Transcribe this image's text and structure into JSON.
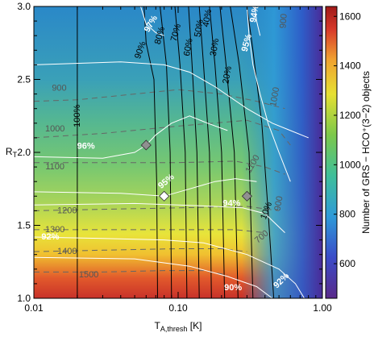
{
  "chart_data": {
    "type": "heatmap",
    "xlabel": "T",
    "xlabel_sub": "A,thresh",
    "xlabel_unit": " [K]",
    "ylabel": "R",
    "ylabel_sub": "T",
    "x_scale": "log",
    "xlim": [
      0.01,
      1.0
    ],
    "ylim": [
      1.0,
      3.0
    ],
    "x_ticks": [
      {
        "value": 0.01,
        "label": "0.01"
      },
      {
        "value": 0.1,
        "label": "0.10"
      },
      {
        "value": 1.0,
        "label": "1.00"
      }
    ],
    "y_ticks": [
      {
        "value": 1.0,
        "label": "1.0"
      },
      {
        "value": 1.5,
        "label": "1.5"
      },
      {
        "value": 2.0,
        "label": "2.0"
      },
      {
        "value": 2.5,
        "label": "2.5"
      },
      {
        "value": 3.0,
        "label": "3.0"
      }
    ],
    "colorbar": {
      "label": "Number of GRS − HCO⁺(3−2) objects",
      "range": [
        460,
        1640
      ],
      "ticks": [
        {
          "value": 600,
          "label": "600"
        },
        {
          "value": 800,
          "label": "800"
        },
        {
          "value": 1000,
          "label": "1000"
        },
        {
          "value": 1200,
          "label": "1200"
        },
        {
          "value": 1400,
          "label": "1400"
        },
        {
          "value": 1600,
          "label": "1600"
        }
      ],
      "colors": [
        "#5a2a8a",
        "#3a5bd0",
        "#2fa0d8",
        "#3fbf9a",
        "#7cc84a",
        "#e6e033",
        "#f0a030",
        "#d83a2a",
        "#a01a1a"
      ]
    },
    "count_contours_dashed": [
      {
        "label": "900",
        "points": [
          [
            0.01,
            2.35
          ],
          [
            0.02,
            2.36
          ],
          [
            0.05,
            2.4
          ],
          [
            0.1,
            2.43
          ],
          [
            0.2,
            2.4
          ],
          [
            0.35,
            2.35
          ],
          [
            0.55,
            2.3
          ]
        ]
      },
      {
        "label": "1000",
        "points": [
          [
            0.01,
            2.1
          ],
          [
            0.03,
            2.13
          ],
          [
            0.1,
            2.18
          ],
          [
            0.3,
            2.22
          ],
          [
            0.5,
            2.15
          ],
          [
            0.6,
            2.05
          ]
        ]
      },
      {
        "label": "1100",
        "points": [
          [
            0.01,
            1.93
          ],
          [
            0.03,
            1.93
          ],
          [
            0.1,
            1.93
          ],
          [
            0.25,
            1.94
          ],
          [
            0.4,
            1.9
          ],
          [
            0.55,
            1.85
          ]
        ]
      },
      {
        "label": "1200",
        "points": [
          [
            0.01,
            1.6
          ],
          [
            0.03,
            1.61
          ],
          [
            0.1,
            1.62
          ],
          [
            0.3,
            1.63
          ],
          [
            0.5,
            1.6
          ]
        ]
      },
      {
        "label": "1300",
        "points": [
          [
            0.01,
            1.47
          ],
          [
            0.03,
            1.47
          ],
          [
            0.1,
            1.47
          ],
          [
            0.25,
            1.47
          ],
          [
            0.4,
            1.45
          ]
        ]
      },
      {
        "label": "1400",
        "points": [
          [
            0.01,
            1.32
          ],
          [
            0.03,
            1.33
          ],
          [
            0.1,
            1.34
          ],
          [
            0.2,
            1.34
          ],
          [
            0.3,
            1.32
          ]
        ]
      },
      {
        "label": "1500",
        "points": [
          [
            0.01,
            1.18
          ],
          [
            0.03,
            1.18
          ],
          [
            0.08,
            1.19
          ],
          [
            0.15,
            1.19
          ],
          [
            0.22,
            1.16
          ]
        ]
      }
    ],
    "percent_contours_black": [
      {
        "label": "100%",
        "points": [
          [
            0.02,
            1.0
          ],
          [
            0.02,
            3.0
          ]
        ]
      },
      {
        "label": "90%",
        "points": [
          [
            0.072,
            1.0
          ],
          [
            0.071,
            1.8
          ],
          [
            0.068,
            2.5
          ],
          [
            0.06,
            2.75
          ],
          [
            0.058,
            3.0
          ]
        ]
      },
      {
        "label": "80%",
        "points": [
          [
            0.09,
            1.0
          ],
          [
            0.088,
            2.0
          ],
          [
            0.083,
            2.6
          ],
          [
            0.075,
            3.0
          ]
        ]
      },
      {
        "label": "70%",
        "points": [
          [
            0.115,
            1.0
          ],
          [
            0.112,
            2.0
          ],
          [
            0.103,
            2.6
          ],
          [
            0.095,
            3.0
          ]
        ]
      },
      {
        "label": "60%",
        "points": [
          [
            0.14,
            1.0
          ],
          [
            0.135,
            2.0
          ],
          [
            0.125,
            2.6
          ],
          [
            0.118,
            3.0
          ]
        ]
      },
      {
        "label": "50%",
        "points": [
          [
            0.17,
            1.0
          ],
          [
            0.165,
            2.0
          ],
          [
            0.15,
            2.6
          ],
          [
            0.14,
            3.0
          ]
        ]
      },
      {
        "label": "40%",
        "points": [
          [
            0.21,
            1.0
          ],
          [
            0.2,
            2.0
          ],
          [
            0.18,
            2.6
          ],
          [
            0.165,
            3.0
          ]
        ]
      },
      {
        "label": "30%",
        "points": [
          [
            0.26,
            1.0
          ],
          [
            0.245,
            2.0
          ],
          [
            0.215,
            2.6
          ],
          [
            0.195,
            3.0
          ]
        ]
      },
      {
        "label": "20%",
        "points": [
          [
            0.33,
            1.0
          ],
          [
            0.31,
            2.0
          ],
          [
            0.265,
            2.6
          ],
          [
            0.23,
            3.0
          ]
        ]
      },
      {
        "label": "10%",
        "points": [
          [
            0.46,
            1.0
          ],
          [
            0.42,
            1.6
          ],
          [
            0.38,
            2.2
          ],
          [
            0.33,
            2.7
          ],
          [
            0.3,
            3.0
          ]
        ]
      }
    ],
    "percent_contours_white": [
      {
        "label": "97%",
        "points": [
          [
            0.055,
            3.0
          ],
          [
            0.06,
            2.88
          ],
          [
            0.07,
            2.82
          ],
          [
            0.08,
            2.8
          ]
        ]
      },
      {
        "label": "96%",
        "points": [
          [
            0.01,
            2.6
          ],
          [
            0.04,
            2.62
          ],
          [
            0.08,
            2.6
          ],
          [
            0.12,
            2.55
          ],
          [
            0.18,
            2.45
          ],
          [
            0.3,
            2.3
          ],
          [
            0.45,
            2.2
          ],
          [
            0.6,
            2.15
          ],
          [
            0.8,
            2.1
          ]
        ]
      },
      {
        "label": "95%",
        "points": [
          [
            0.3,
            3.0
          ],
          [
            0.31,
            2.8
          ],
          [
            0.33,
            2.6
          ],
          [
            0.37,
            2.4
          ],
          [
            0.42,
            2.2
          ],
          [
            0.5,
            2.0
          ],
          [
            0.6,
            1.8
          ]
        ]
      },
      {
        "label": "94%",
        "points": [
          [
            0.34,
            3.0
          ],
          [
            0.35,
            2.9
          ],
          [
            0.37,
            2.8
          ]
        ]
      },
      {
        "label": "96% (mid)",
        "points": [
          [
            0.01,
            1.97
          ],
          [
            0.03,
            1.96
          ],
          [
            0.05,
            2.0
          ],
          [
            0.06,
            2.05
          ],
          [
            0.07,
            2.12
          ],
          [
            0.09,
            2.2
          ],
          [
            0.12,
            2.25
          ],
          [
            0.16,
            2.2
          ],
          [
            0.22,
            2.15
          ]
        ]
      },
      {
        "label": "95% (low)",
        "points": [
          [
            0.01,
            1.73
          ],
          [
            0.04,
            1.72
          ],
          [
            0.08,
            1.7
          ],
          [
            0.12,
            1.75
          ],
          [
            0.18,
            1.8
          ],
          [
            0.25,
            1.82
          ],
          [
            0.35,
            1.8
          ]
        ]
      },
      {
        "label": "94% (low)",
        "points": [
          [
            0.01,
            1.64
          ],
          [
            0.05,
            1.65
          ],
          [
            0.1,
            1.64
          ],
          [
            0.18,
            1.63
          ],
          [
            0.28,
            1.62
          ],
          [
            0.4,
            1.58
          ],
          [
            0.55,
            1.45
          ]
        ]
      },
      {
        "label": "92%",
        "points": [
          [
            0.01,
            1.42
          ],
          [
            0.03,
            1.41
          ],
          [
            0.08,
            1.4
          ],
          [
            0.15,
            1.38
          ],
          [
            0.3,
            1.3
          ],
          [
            0.5,
            1.2
          ],
          [
            0.65,
            1.1
          ],
          [
            0.75,
            1.0
          ]
        ]
      },
      {
        "label": "90%",
        "points": [
          [
            0.01,
            1.28
          ],
          [
            0.05,
            1.27
          ],
          [
            0.12,
            1.22
          ],
          [
            0.22,
            1.15
          ],
          [
            0.35,
            1.08
          ],
          [
            0.45,
            1.0
          ]
        ]
      }
    ],
    "contour_labels": [
      {
        "text": "97%",
        "x": 0.065,
        "y": 2.88,
        "color": "white",
        "rotate": -60
      },
      {
        "text": "96%",
        "x": 0.023,
        "y": 2.04,
        "color": "white",
        "rotate": 0
      },
      {
        "text": "95%",
        "x": 0.083,
        "y": 1.8,
        "color": "white",
        "rotate": -40
      },
      {
        "text": "94%",
        "x": 0.235,
        "y": 1.65,
        "color": "white",
        "rotate": 0
      },
      {
        "text": "92%",
        "x": 0.013,
        "y": 1.42,
        "color": "white",
        "rotate": 0
      },
      {
        "text": "90%",
        "x": 0.24,
        "y": 1.07,
        "color": "white",
        "rotate": 0
      },
      {
        "text": "92%",
        "x": 0.52,
        "y": 1.12,
        "color": "white",
        "rotate": -45
      },
      {
        "text": "95%",
        "x": 0.3,
        "y": 2.75,
        "color": "white",
        "rotate": -75
      },
      {
        "text": "94%",
        "x": 0.34,
        "y": 2.95,
        "color": "white",
        "rotate": -80
      },
      {
        "text": "90%",
        "x": 0.055,
        "y": 2.7,
        "color": "black",
        "rotate": -70
      },
      {
        "text": "80%",
        "x": 0.075,
        "y": 2.8,
        "color": "black",
        "rotate": -75
      },
      {
        "text": "70%",
        "x": 0.097,
        "y": 2.82,
        "color": "black",
        "rotate": -75
      },
      {
        "text": "60%",
        "x": 0.118,
        "y": 2.72,
        "color": "black",
        "rotate": -80
      },
      {
        "text": "50%",
        "x": 0.14,
        "y": 2.85,
        "color": "black",
        "rotate": -80
      },
      {
        "text": "40%",
        "x": 0.16,
        "y": 2.92,
        "color": "black",
        "rotate": -80
      },
      {
        "text": "30%",
        "x": 0.18,
        "y": 2.72,
        "color": "black",
        "rotate": -80
      },
      {
        "text": "20%",
        "x": 0.22,
        "y": 2.53,
        "color": "black",
        "rotate": -80
      },
      {
        "text": "10%",
        "x": 0.41,
        "y": 1.6,
        "color": "black",
        "rotate": -70
      },
      {
        "text": "100%",
        "x": 0.02,
        "y": 2.25,
        "color": "black",
        "rotate": -90
      },
      {
        "text": "900",
        "x": 0.015,
        "y": 2.44,
        "color": "gray",
        "rotate": 0
      },
      {
        "text": "900",
        "x": 0.54,
        "y": 2.9,
        "color": "gray",
        "rotate": -85
      },
      {
        "text": "1000",
        "x": 0.014,
        "y": 2.16,
        "color": "gray",
        "rotate": 0
      },
      {
        "text": "1000",
        "x": 0.47,
        "y": 2.38,
        "color": "gray",
        "rotate": -80
      },
      {
        "text": "1100",
        "x": 0.014,
        "y": 1.9,
        "color": "gray",
        "rotate": 0
      },
      {
        "text": "1100",
        "x": 0.33,
        "y": 1.92,
        "color": "gray",
        "rotate": -60
      },
      {
        "text": "1200",
        "x": 0.017,
        "y": 1.6,
        "color": "gray",
        "rotate": 0
      },
      {
        "text": "1300",
        "x": 0.014,
        "y": 1.47,
        "color": "gray",
        "rotate": 0
      },
      {
        "text": "1400",
        "x": 0.017,
        "y": 1.32,
        "color": "gray",
        "rotate": 0
      },
      {
        "text": "1500",
        "x": 0.024,
        "y": 1.16,
        "color": "gray",
        "rotate": 0
      },
      {
        "text": "900",
        "x": 0.5,
        "y": 1.65,
        "color": "gray",
        "rotate": -80
      },
      {
        "text": "700",
        "x": 0.38,
        "y": 1.42,
        "color": "gray",
        "rotate": -40
      }
    ],
    "markers": [
      {
        "shape": "diamond",
        "color": "#909090",
        "x": 0.06,
        "y": 2.05
      },
      {
        "shape": "diamond",
        "color": "#ffffff",
        "x": 0.08,
        "y": 1.7
      },
      {
        "shape": "diamond",
        "color": "#909090",
        "x": 0.3,
        "y": 1.7
      }
    ]
  }
}
